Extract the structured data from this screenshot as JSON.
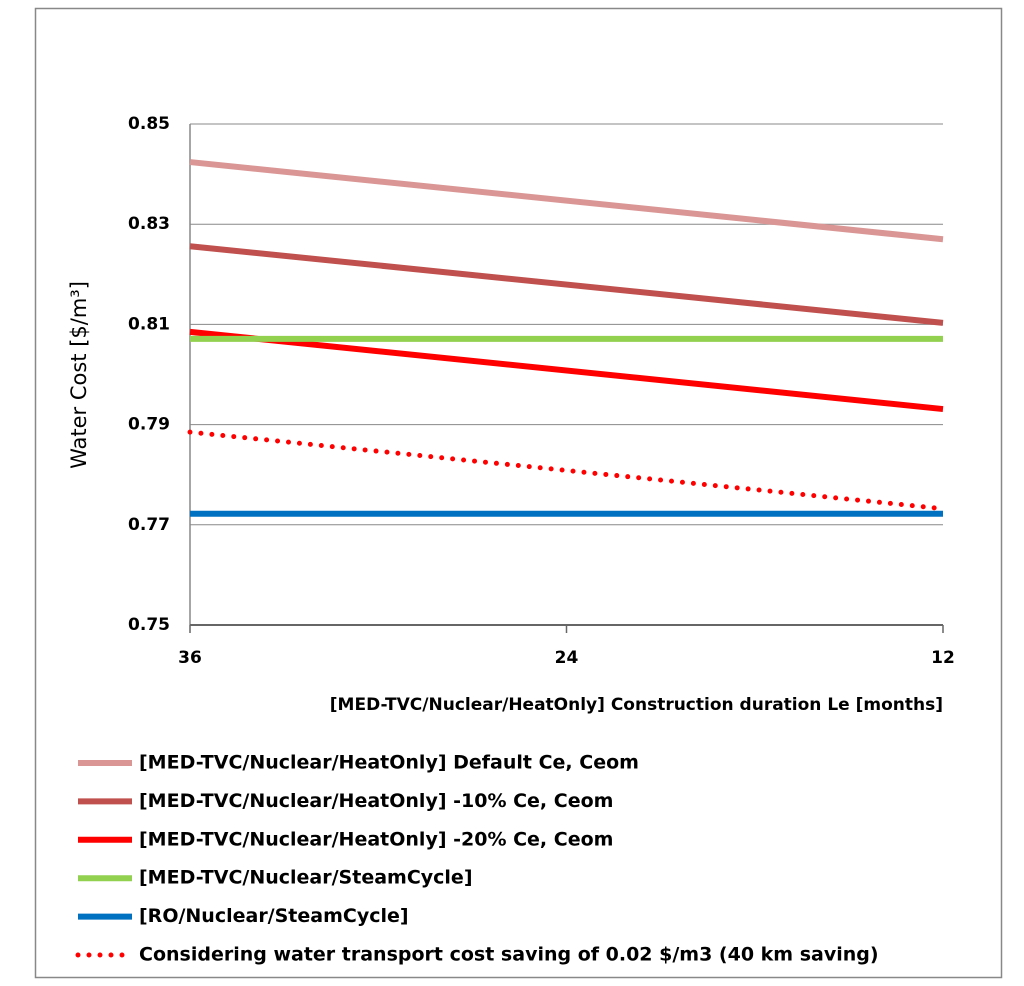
{
  "chart_data": {
    "type": "line",
    "y_label": "Water Cost [$/m³]",
    "x_label": "[MED-TVC/Nuclear/HeatOnly] Construction duration Le [months]",
    "x": [
      36,
      12
    ],
    "xlim": [
      36,
      12
    ],
    "xticks": [
      36,
      24,
      12
    ],
    "ylim": [
      0.75,
      0.85
    ],
    "yticks": [
      0.75,
      0.77,
      0.79,
      0.81,
      0.83,
      0.85
    ],
    "grid": true,
    "legend": "bottom",
    "series": [
      {
        "name": "[MED-TVC/Nuclear/HeatOnly] Default Ce, Ceom",
        "color": "#d99694",
        "values": [
          0.8424,
          0.827
        ]
      },
      {
        "name": "[MED-TVC/Nuclear/HeatOnly] -10% Ce, Ceom",
        "color": "#c0504d",
        "values": [
          0.8256,
          0.8103
        ]
      },
      {
        "name": "[MED-TVC/Nuclear/HeatOnly] -20% Ce, Ceom",
        "color": "#ff0000",
        "values": [
          0.8085,
          0.7931
        ]
      },
      {
        "name": "[MED-TVC/Nuclear/SteamCycle]",
        "color": "#92d050",
        "values": [
          0.8071,
          0.8071
        ]
      },
      {
        "name": "[RO/Nuclear/SteamCycle]",
        "color": "#0070c0",
        "values": [
          0.7722,
          0.7722
        ]
      },
      {
        "name": "Considering water transport cost saving of 0.02 $/m3 (40 km saving)",
        "color": "#ff0000",
        "line_style": "dotted",
        "values": [
          0.7885,
          0.7732
        ]
      }
    ]
  }
}
